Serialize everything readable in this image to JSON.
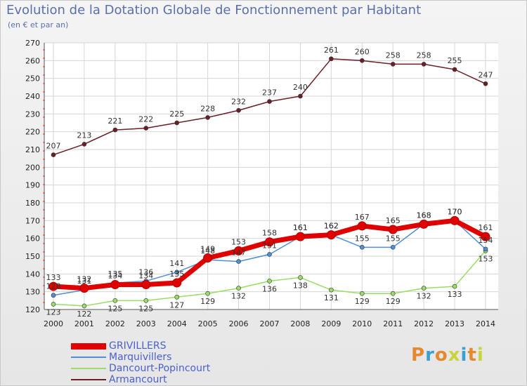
{
  "chart_data": {
    "type": "line",
    "title": "Evolution de la Dotation Globale de Fonctionnement par Habitant",
    "subtitle": "(en € et par an)",
    "xlabel": "",
    "ylabel": "",
    "ylim": [
      120,
      270
    ],
    "yticks": [
      "120",
      "130",
      "140",
      "150",
      "160",
      "170",
      "180",
      "190",
      "200",
      "210",
      "220",
      "230",
      "240",
      "250",
      "260",
      "270"
    ],
    "grid": true,
    "categories": [
      "2000",
      "2001",
      "2002",
      "2003",
      "2004",
      "2005",
      "2006",
      "2007",
      "2008",
      "2009",
      "2010",
      "2011",
      "2012",
      "2013",
      "2014"
    ],
    "series": [
      {
        "name": "GRIVILLERS",
        "color": "#e00000",
        "values": [
          133,
          132,
          134,
          134,
          135,
          149,
          153,
          158,
          161,
          162,
          167,
          165,
          168,
          170,
          161
        ]
      },
      {
        "name": "Marquivillers",
        "color": "#4f8fd2",
        "values": [
          128,
          131,
          135,
          136,
          141,
          148,
          147,
          151,
          161,
          162,
          155,
          155,
          168,
          170,
          154
        ]
      },
      {
        "name": "Dancourt-Popincourt",
        "color": "#99dd66",
        "values": [
          123,
          122,
          125,
          125,
          127,
          129,
          132,
          136,
          138,
          131,
          129,
          129,
          132,
          133,
          153
        ]
      },
      {
        "name": "Armancourt",
        "color": "#6b1e26",
        "values": [
          207,
          213,
          221,
          222,
          225,
          228,
          232,
          237,
          240,
          261,
          260,
          258,
          258,
          255,
          247
        ]
      }
    ]
  },
  "logo": {
    "text": "Proxiti",
    "colors": [
      "#e5892f",
      "#3a9fd6",
      "#e5892f",
      "#c8d43a",
      "#3a9fd6",
      "#e5892f",
      "#c8d43a"
    ]
  }
}
